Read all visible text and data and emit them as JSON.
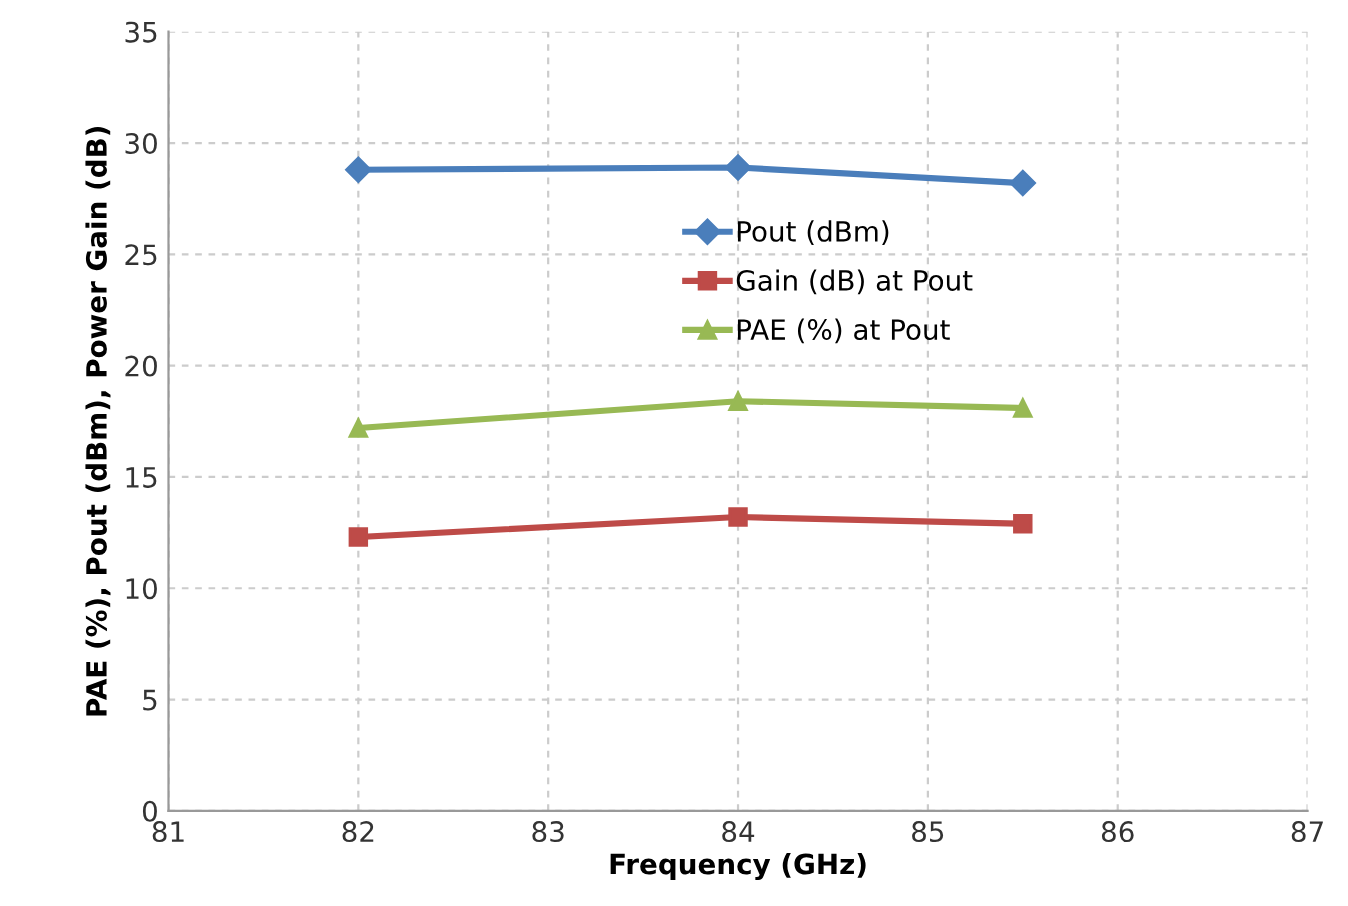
{
  "chart_data": {
    "type": "line",
    "xlabel": "Frequency (GHz)",
    "ylabel": "PAE (%), Pout (dBm), Power Gain (dB)",
    "x": [
      82,
      84,
      85.5
    ],
    "series": [
      {
        "name": "Pout (dBm)",
        "color": "#4a7ebb",
        "marker": "diamond",
        "values": [
          28.8,
          28.9,
          28.2
        ]
      },
      {
        "name": "Gain (dB) at Pout",
        "color": "#be4b48",
        "marker": "square",
        "values": [
          12.3,
          13.2,
          12.9
        ]
      },
      {
        "name": "PAE (%) at Pout",
        "color": "#98b954",
        "marker": "triangle",
        "values": [
          17.2,
          18.4,
          18.1
        ]
      }
    ],
    "xlim": [
      81,
      87
    ],
    "xticks": [
      81,
      82,
      83,
      84,
      85,
      86,
      87
    ],
    "ylim": [
      0,
      35
    ],
    "yticks": [
      0,
      5,
      10,
      15,
      20,
      25,
      30,
      35
    ],
    "grid": true,
    "legend": "top",
    "line_style": "solid"
  }
}
